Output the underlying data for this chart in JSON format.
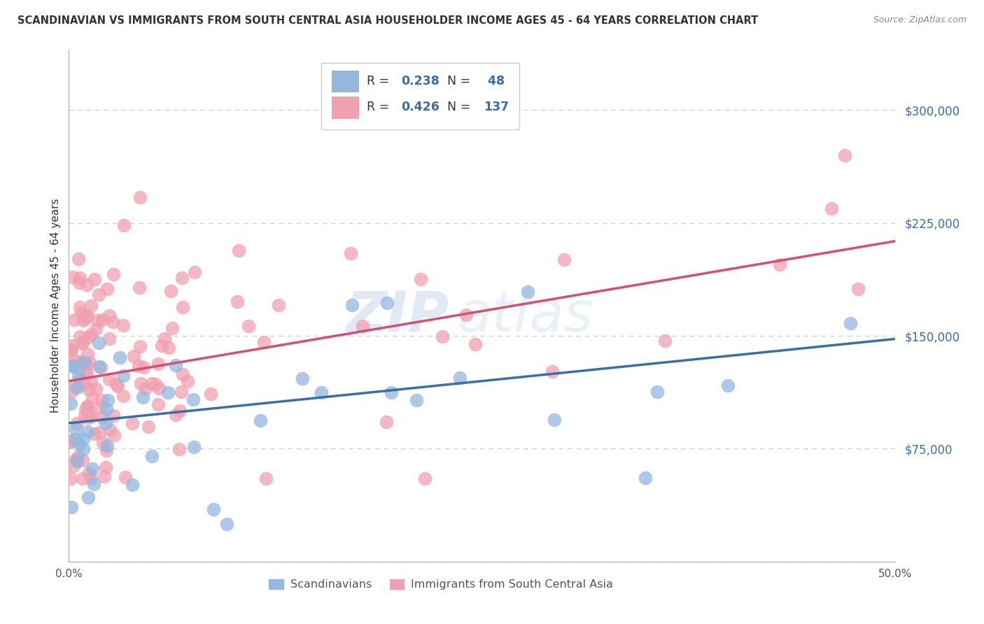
{
  "title": "SCANDINAVIAN VS IMMIGRANTS FROM SOUTH CENTRAL ASIA HOUSEHOLDER INCOME AGES 45 - 64 YEARS CORRELATION CHART",
  "source": "Source: ZipAtlas.com",
  "ylabel": "Householder Income Ages 45 - 64 years",
  "xlim": [
    0.0,
    0.5
  ],
  "ylim": [
    0,
    340000
  ],
  "yticks": [
    0,
    75000,
    150000,
    225000,
    300000
  ],
  "ytick_labels": [
    "",
    "$75,000",
    "$150,000",
    "$225,000",
    "$300,000"
  ],
  "xticks": [
    0.0,
    0.1,
    0.2,
    0.3,
    0.4,
    0.5
  ],
  "xtick_labels": [
    "0.0%",
    "",
    "",
    "",
    "",
    "50.0%"
  ],
  "blue_color": "#92b8e0",
  "pink_color": "#f0a0b0",
  "blue_line_color": "#3a6ea5",
  "pink_line_color": "#d45070",
  "R_blue": 0.238,
  "N_blue": 48,
  "R_pink": 0.426,
  "N_pink": 137,
  "watermark_zip": "ZIP",
  "watermark_atlas": "atlas",
  "legend_label_blue": "Scandinavians",
  "legend_label_pink": "Immigrants from South Central Asia",
  "blue_trend_x0": 0.0,
  "blue_trend_y0": 92000,
  "blue_trend_x1": 0.5,
  "blue_trend_y1": 148000,
  "pink_trend_x0": 0.0,
  "pink_trend_y0": 120000,
  "pink_trend_x1": 0.5,
  "pink_trend_y1": 213000
}
